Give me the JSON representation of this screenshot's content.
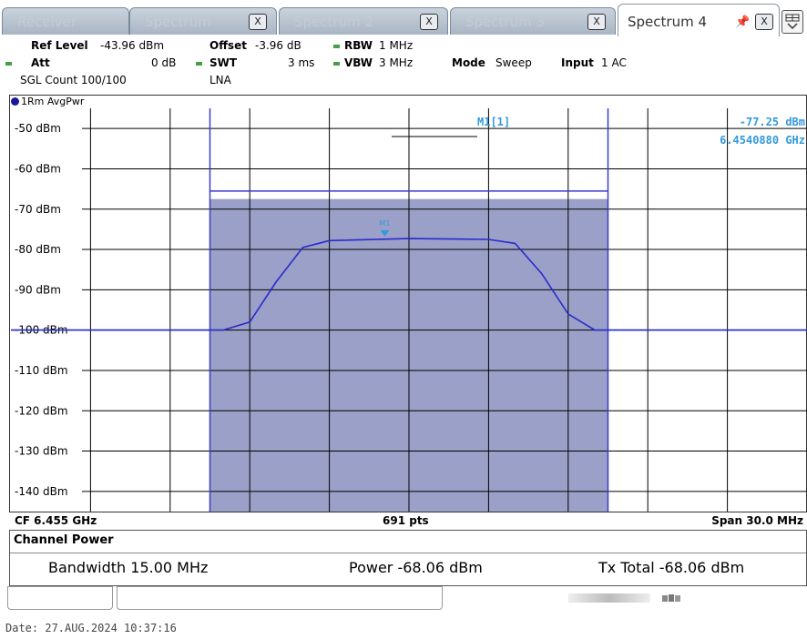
{
  "tabs": [
    {
      "label": "Receiver"
    },
    {
      "label": "Spectrum"
    },
    {
      "label": "Spectrum 2"
    },
    {
      "label": "Spectrum 3"
    },
    {
      "label": "Spectrum 4",
      "active": true
    }
  ],
  "tab_close_glyph": "X",
  "settings": {
    "ref_level_label": "Ref Level",
    "ref_level_value": "-43.96 dBm",
    "offset_label": "Offset",
    "offset_value": "-3.96 dB",
    "rbw_label": "RBW",
    "rbw_value": "1 MHz",
    "att_label": "Att",
    "att_value": "0 dB",
    "swt_label": "SWT",
    "swt_value": "3 ms",
    "vbw_label": "VBW",
    "vbw_value": "3 MHz",
    "mode_label": "Mode",
    "mode_value": "Sweep",
    "input_label": "Input",
    "input_value": "1 AC",
    "sgl_count": "SGL Count 100/100",
    "lna": "LNA"
  },
  "trace_label": "1Rm AvgPwr",
  "marker": {
    "name": "M1[1]",
    "level": "-77.25 dBm",
    "frequency": "6.4540880 GHz",
    "symbol": "M1"
  },
  "footer": {
    "cf": "CF 6.455 GHz",
    "points": "691 pts",
    "span": "Span 30.0 MHz"
  },
  "channel_power": {
    "title": "Channel Power",
    "bandwidth": "Bandwidth 15.00 MHz",
    "power": "Power -68.06 dBm",
    "tx_total": "Tx Total -68.06 dBm"
  },
  "date": "Date: 27.AUG.2024  10:37:16",
  "colors": {
    "trace": "#2a2acc",
    "channel_fill": "#9aa0c8",
    "limit_line": "#3a3ad0",
    "marker_text": "#3399dd",
    "grid": "#000000"
  },
  "chart_data": {
    "type": "line",
    "ylim": [
      -145,
      -45
    ],
    "y_ticks": [
      "-50 dBm",
      "-60 dBm",
      "-70 dBm",
      "-80 dBm",
      "-90 dBm",
      "-100 dBm",
      "-110 dBm",
      "-120 dBm",
      "-130 dBm",
      "-140 dBm"
    ],
    "x_range_mhz": [
      6440.0,
      6470.0
    ],
    "channel_bandwidth_mhz": [
      6447.5,
      6462.5
    ],
    "channel_power_dbm": -68.06,
    "series": [
      {
        "x": [
          6440.0,
          6445.0,
          6448.0,
          6449.0,
          6450.0,
          6451.0,
          6452.0,
          6455.0,
          6458.0,
          6459.0,
          6460.0,
          6461.0,
          6462.0,
          6465.0,
          6470.0
        ],
        "values": [
          -100.0,
          -100.0,
          -100.0,
          -98.0,
          -88.0,
          -79.5,
          -77.8,
          -77.3,
          -77.5,
          -78.5,
          -86.0,
          -96.0,
          -100.0,
          -100.0,
          -100.0
        ]
      }
    ]
  }
}
